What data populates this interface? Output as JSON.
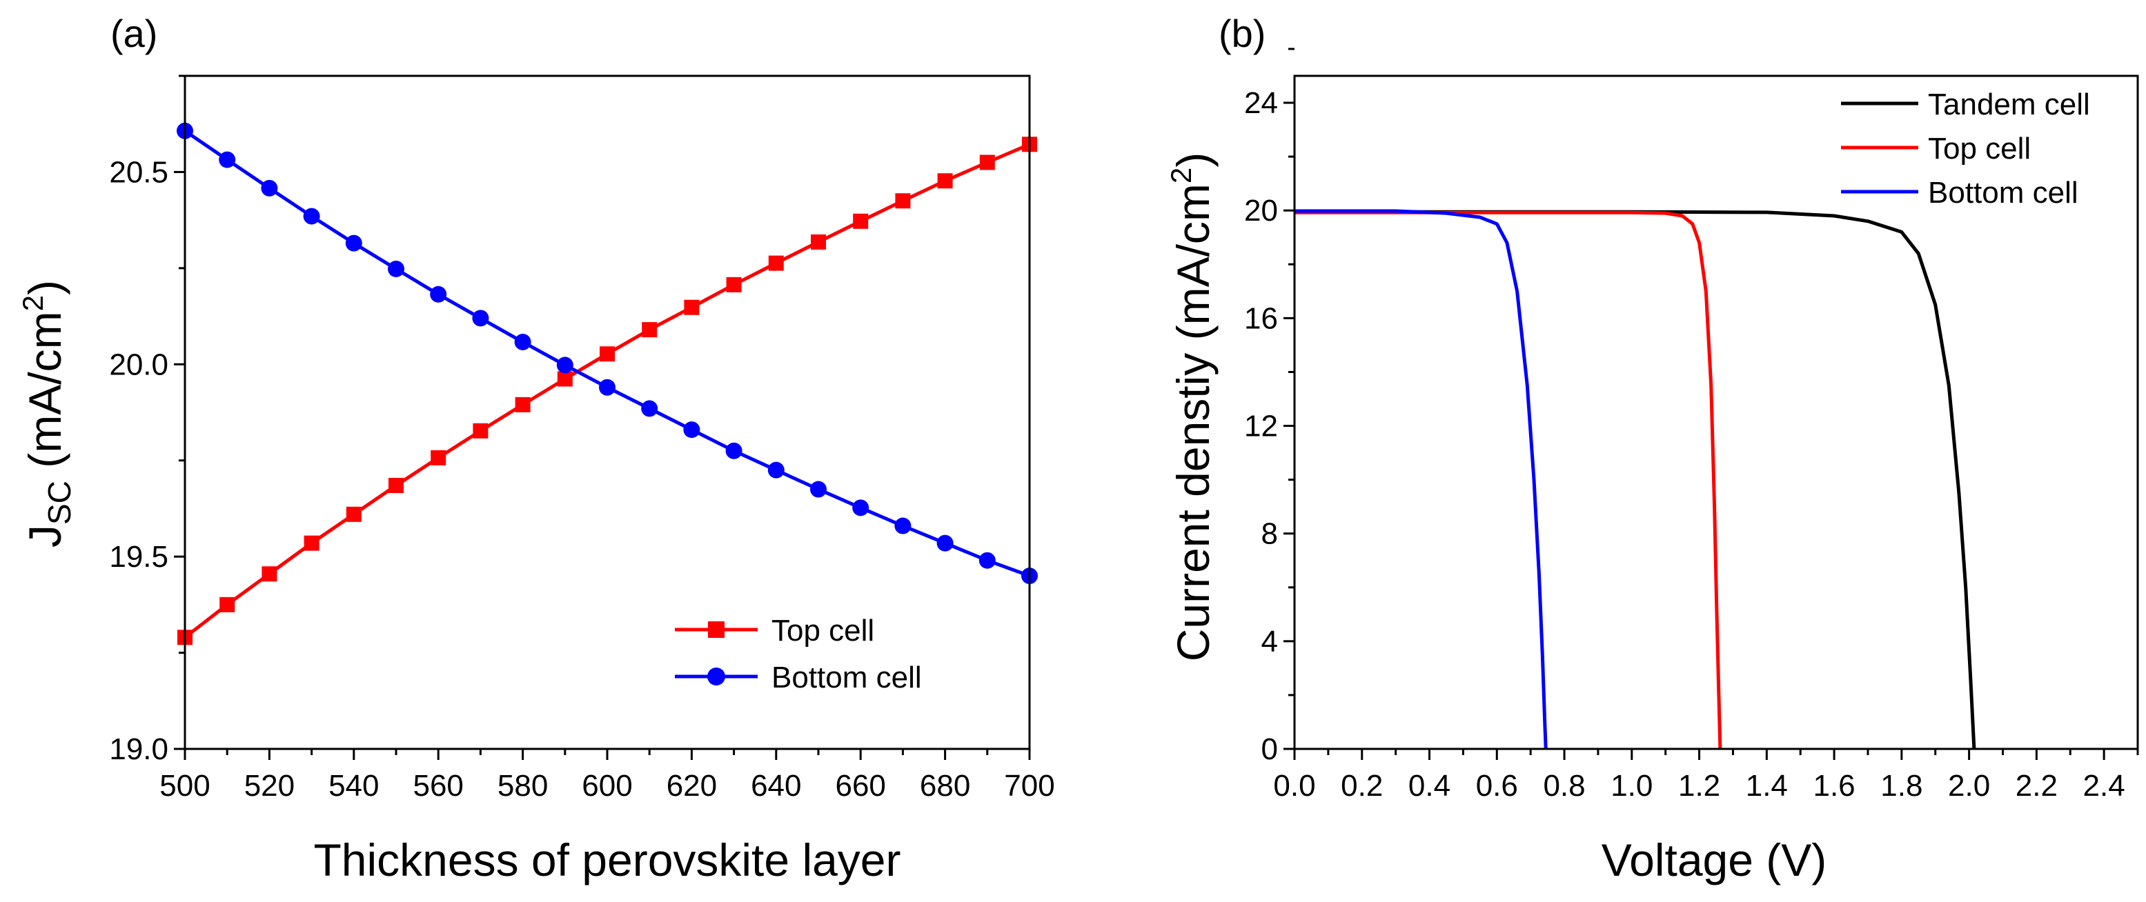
{
  "chart_data": [
    {
      "panel": "(a)",
      "type": "line",
      "title": "",
      "xlabel": "Thickness of perovskite layer",
      "ylabel_main": "J",
      "ylabel_sub": "SC",
      "ylabel_unit_pre": "(mA/cm",
      "ylabel_unit_sup": "2",
      "ylabel_unit_post": ")",
      "xlim": [
        500,
        700
      ],
      "ylim": [
        19.0,
        20.75
      ],
      "x_ticks": [
        500,
        520,
        540,
        560,
        580,
        600,
        620,
        640,
        660,
        680,
        700
      ],
      "x_tick_labels": [
        "500",
        "520",
        "540",
        "560",
        "580",
        "600",
        "620",
        "640",
        "660",
        "680",
        "700"
      ],
      "y_ticks": [
        19.0,
        19.5,
        20.0,
        20.5
      ],
      "y_tick_labels": [
        "19.0",
        "19.5",
        "20.0",
        "20.5"
      ],
      "grid": false,
      "legend_position": "bottom-right",
      "x": [
        500,
        510,
        520,
        530,
        540,
        550,
        560,
        570,
        580,
        590,
        600,
        610,
        620,
        630,
        640,
        650,
        660,
        670,
        680,
        690,
        700
      ],
      "series": [
        {
          "name": "Top cell",
          "color": "#ff0000",
          "marker": "square",
          "values": [
            19.29,
            19.375,
            19.455,
            19.535,
            19.61,
            19.685,
            19.757,
            19.827,
            19.895,
            19.962,
            20.027,
            20.09,
            20.148,
            20.207,
            20.263,
            20.318,
            20.372,
            20.425,
            20.477,
            20.525,
            20.572
          ]
        },
        {
          "name": "Bottom cell",
          "color": "#0000ff",
          "marker": "circle",
          "values": [
            20.607,
            20.532,
            20.458,
            20.385,
            20.315,
            20.248,
            20.182,
            20.12,
            20.058,
            19.998,
            19.94,
            19.885,
            19.83,
            19.775,
            19.725,
            19.675,
            19.627,
            19.58,
            19.535,
            19.49,
            19.45
          ]
        }
      ]
    },
    {
      "panel": "(b)",
      "type": "line",
      "title": "",
      "xlabel": "Voltage (V)",
      "ylabel_pre": "Current denstiy (mA/cm",
      "ylabel_sup": "2",
      "ylabel_post": ")",
      "xlim": [
        0.0,
        2.5
      ],
      "ylim": [
        0,
        25
      ],
      "x_ticks": [
        0.0,
        0.2,
        0.4,
        0.6,
        0.8,
        1.0,
        1.2,
        1.4,
        1.6,
        1.8,
        2.0,
        2.2,
        2.4
      ],
      "x_tick_labels": [
        "0.0",
        "0.2",
        "0.4",
        "0.6",
        "0.8",
        "1.0",
        "1.2",
        "1.4",
        "1.6",
        "1.8",
        "2.0",
        "2.2",
        "2.4"
      ],
      "y_ticks": [
        0,
        4,
        8,
        12,
        16,
        20,
        24
      ],
      "y_tick_labels": [
        "0",
        "4",
        "8",
        "12",
        "16",
        "20",
        "24"
      ],
      "grid": false,
      "legend_position": "top-right",
      "series": [
        {
          "name": "Tandem cell",
          "color": "#000000",
          "points": [
            [
              0.0,
              19.95
            ],
            [
              0.5,
              19.95
            ],
            [
              1.0,
              19.95
            ],
            [
              1.4,
              19.93
            ],
            [
              1.6,
              19.8
            ],
            [
              1.7,
              19.6
            ],
            [
              1.8,
              19.2
            ],
            [
              1.85,
              18.4
            ],
            [
              1.9,
              16.5
            ],
            [
              1.94,
              13.5
            ],
            [
              1.97,
              9.5
            ],
            [
              1.99,
              6.0
            ],
            [
              2.005,
              2.5
            ],
            [
              2.015,
              0.0
            ]
          ]
        },
        {
          "name": "Top cell",
          "color": "#ff0000",
          "points": [
            [
              0.0,
              19.92
            ],
            [
              0.5,
              19.92
            ],
            [
              1.0,
              19.92
            ],
            [
              1.1,
              19.9
            ],
            [
              1.15,
              19.8
            ],
            [
              1.18,
              19.5
            ],
            [
              1.2,
              18.8
            ],
            [
              1.22,
              17.0
            ],
            [
              1.235,
              13.5
            ],
            [
              1.245,
              9.0
            ],
            [
              1.252,
              5.0
            ],
            [
              1.258,
              2.0
            ],
            [
              1.262,
              0.0
            ]
          ]
        },
        {
          "name": "Bottom cell",
          "color": "#0000ff",
          "points": [
            [
              0.0,
              19.98
            ],
            [
              0.3,
              19.98
            ],
            [
              0.45,
              19.9
            ],
            [
              0.55,
              19.75
            ],
            [
              0.6,
              19.5
            ],
            [
              0.63,
              18.8
            ],
            [
              0.66,
              17.0
            ],
            [
              0.69,
              13.5
            ],
            [
              0.71,
              10.0
            ],
            [
              0.725,
              6.5
            ],
            [
              0.735,
              3.5
            ],
            [
              0.742,
              1.0
            ],
            [
              0.745,
              0.0
            ]
          ]
        }
      ]
    }
  ]
}
